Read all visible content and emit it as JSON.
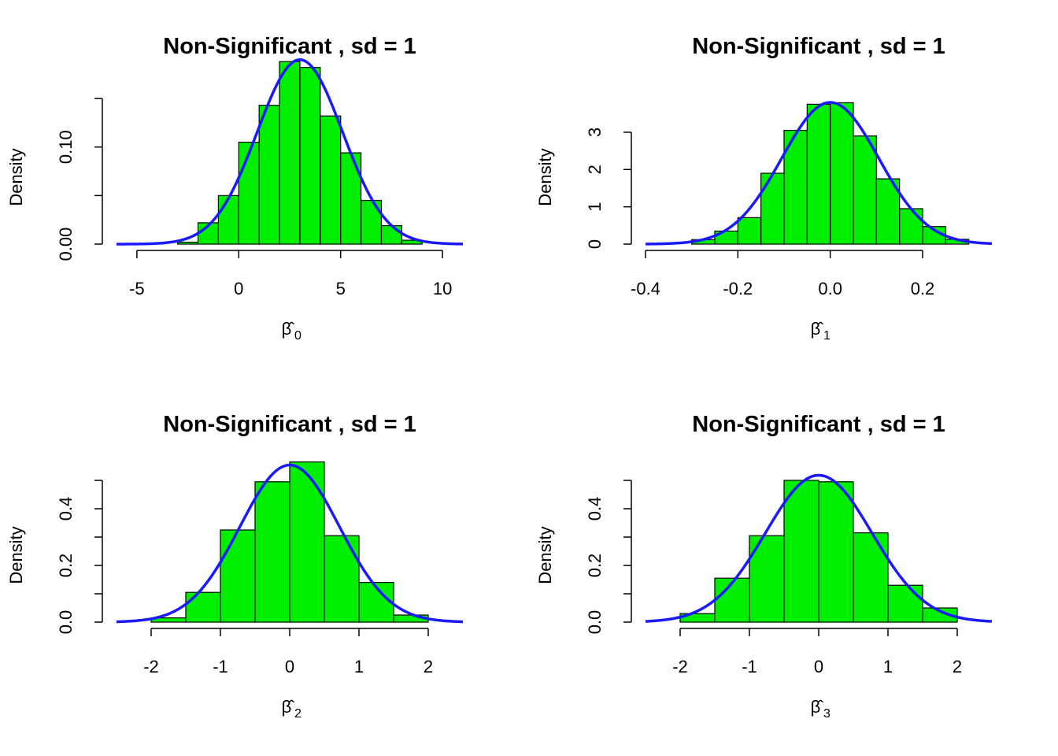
{
  "colors": {
    "bar_fill": "#00ee00",
    "bar_stroke": "#000000",
    "curve": "#1a1aff",
    "axis": "#000000"
  },
  "chart_data": [
    {
      "type": "bar",
      "title": "Non-Significant , sd =  1",
      "ylabel": "Density",
      "xlabel": "β̂",
      "xlabel_subscript": "0",
      "xlim": [
        -6,
        11
      ],
      "ylim": [
        0,
        0.146
      ],
      "xticks": [
        -5,
        0,
        5,
        10
      ],
      "xtick_labels": [
        "-5",
        "0",
        "5",
        "10"
      ],
      "yticks": [
        0,
        0.05,
        0.1,
        0.15
      ],
      "ytick_labels": [
        "0.00",
        "",
        "0.10",
        ""
      ],
      "bins": [
        {
          "x0": -3,
          "x1": -2,
          "density": 0.002
        },
        {
          "x0": -2,
          "x1": -1,
          "density": 0.022
        },
        {
          "x0": -1,
          "x1": 0,
          "density": 0.05
        },
        {
          "x0": 0,
          "x1": 1,
          "density": 0.105
        },
        {
          "x0": 1,
          "x1": 2,
          "density": 0.143
        },
        {
          "x0": 2,
          "x1": 3,
          "density": 0.188
        },
        {
          "x0": 3,
          "x1": 4,
          "density": 0.182
        },
        {
          "x0": 4,
          "x1": 5,
          "density": 0.132
        },
        {
          "x0": 5,
          "x1": 6,
          "density": 0.094
        },
        {
          "x0": 6,
          "x1": 7,
          "density": 0.045
        },
        {
          "x0": 7,
          "x1": 8,
          "density": 0.019
        },
        {
          "x0": 8,
          "x1": 9,
          "density": 0.004
        }
      ],
      "normal_curve": {
        "mean": 3,
        "sd": 2.1
      }
    },
    {
      "type": "bar",
      "title": "Non-Significant , sd =  1",
      "ylabel": "Density",
      "xlabel": "β̂",
      "xlabel_subscript": "1",
      "xlim": [
        -0.4,
        0.35
      ],
      "ylim": [
        0,
        3.8
      ],
      "xticks": [
        -0.4,
        -0.2,
        0.0,
        0.2
      ],
      "xtick_labels": [
        "-0.4",
        "-0.2",
        "0.0",
        "0.2"
      ],
      "yticks": [
        0,
        1,
        2,
        3
      ],
      "ytick_labels": [
        "0",
        "1",
        "2",
        "3"
      ],
      "bins": [
        {
          "x0": -0.3,
          "x1": -0.25,
          "density": 0.12
        },
        {
          "x0": -0.25,
          "x1": -0.2,
          "density": 0.35
        },
        {
          "x0": -0.2,
          "x1": -0.15,
          "density": 0.71
        },
        {
          "x0": -0.15,
          "x1": -0.1,
          "density": 1.9
        },
        {
          "x0": -0.1,
          "x1": -0.05,
          "density": 3.05
        },
        {
          "x0": -0.05,
          "x1": 0.0,
          "density": 3.75
        },
        {
          "x0": 0.0,
          "x1": 0.05,
          "density": 3.79
        },
        {
          "x0": 0.05,
          "x1": 0.1,
          "density": 2.9
        },
        {
          "x0": 0.1,
          "x1": 0.15,
          "density": 1.75
        },
        {
          "x0": 0.15,
          "x1": 0.2,
          "density": 0.95
        },
        {
          "x0": 0.2,
          "x1": 0.25,
          "density": 0.47
        },
        {
          "x0": 0.25,
          "x1": 0.3,
          "density": 0.13
        }
      ],
      "normal_curve": {
        "mean": 0.0,
        "sd": 0.105
      }
    },
    {
      "type": "bar",
      "title": "Non-Significant , sd =  1",
      "ylabel": "Density",
      "xlabel": "β̂",
      "xlabel_subscript": "2",
      "xlim": [
        -2.5,
        2.5
      ],
      "ylim": [
        0,
        0.5
      ],
      "xticks": [
        -2,
        -1,
        0,
        1,
        2
      ],
      "xtick_labels": [
        "-2",
        "-1",
        "0",
        "1",
        "2"
      ],
      "yticks": [
        0,
        0.1,
        0.2,
        0.3,
        0.4,
        0.5
      ],
      "ytick_labels": [
        "0.0",
        "",
        "0.2",
        "",
        "0.4",
        ""
      ],
      "bins": [
        {
          "x0": -2,
          "x1": -1.5,
          "density": 0.015
        },
        {
          "x0": -1.5,
          "x1": -1,
          "density": 0.105
        },
        {
          "x0": -1,
          "x1": -0.5,
          "density": 0.325
        },
        {
          "x0": -0.5,
          "x1": 0,
          "density": 0.495
        },
        {
          "x0": 0,
          "x1": 0.5,
          "density": 0.565
        },
        {
          "x0": 0.5,
          "x1": 1,
          "density": 0.305
        },
        {
          "x0": 1,
          "x1": 1.5,
          "density": 0.14
        },
        {
          "x0": 1.5,
          "x1": 2,
          "density": 0.025
        }
      ],
      "normal_curve": {
        "mean": 0.0,
        "sd": 0.72
      }
    },
    {
      "type": "bar",
      "title": "Non-Significant , sd =  1",
      "ylabel": "Density",
      "xlabel": "β̂",
      "xlabel_subscript": "3",
      "xlim": [
        -2.5,
        2.5
      ],
      "ylim": [
        0,
        0.5
      ],
      "xticks": [
        -2,
        -1,
        0,
        1,
        2
      ],
      "xtick_labels": [
        "-2",
        "-1",
        "0",
        "1",
        "2"
      ],
      "yticks": [
        0,
        0.1,
        0.2,
        0.3,
        0.4,
        0.5
      ],
      "ytick_labels": [
        "0.0",
        "",
        "0.2",
        "",
        "0.4",
        ""
      ],
      "bins": [
        {
          "x0": -2,
          "x1": -1.5,
          "density": 0.03
        },
        {
          "x0": -1.5,
          "x1": -1,
          "density": 0.155
        },
        {
          "x0": -1,
          "x1": -0.5,
          "density": 0.305
        },
        {
          "x0": -0.5,
          "x1": 0,
          "density": 0.5
        },
        {
          "x0": 0,
          "x1": 0.5,
          "density": 0.495
        },
        {
          "x0": 0.5,
          "x1": 1,
          "density": 0.315
        },
        {
          "x0": 1,
          "x1": 1.5,
          "density": 0.13
        },
        {
          "x0": 1.5,
          "x1": 2,
          "density": 0.05
        }
      ],
      "normal_curve": {
        "mean": 0.0,
        "sd": 0.77
      }
    }
  ]
}
